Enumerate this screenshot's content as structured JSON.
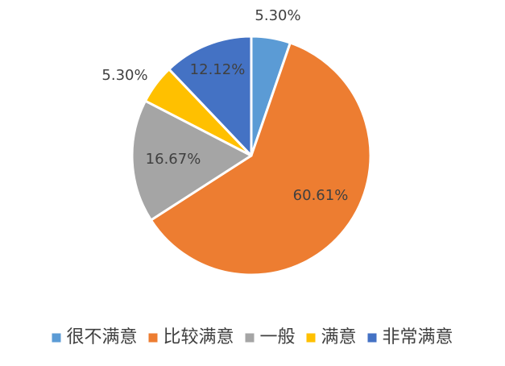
{
  "chart_data": {
    "type": "pie",
    "title": "",
    "series": [
      {
        "categories": [
          "很不满意",
          "比较满意",
          "一般",
          "满意",
          "非常满意"
        ],
        "values": [
          5.3,
          60.61,
          16.67,
          5.3,
          12.12
        ],
        "labels": [
          "5.30%",
          "60.61%",
          "16.67%",
          "5.30%",
          "12.12%"
        ],
        "colors": [
          "#5B9BD5",
          "#ED7D31",
          "#A5A5A5",
          "#FFC000",
          "#4472C4"
        ]
      }
    ],
    "start_angle": "12 o'clock",
    "direction": "clockwise",
    "legend": {
      "position": "bottom",
      "items": [
        "很不满意",
        "比较满意",
        "一般",
        "满意",
        "非常满意"
      ]
    }
  }
}
